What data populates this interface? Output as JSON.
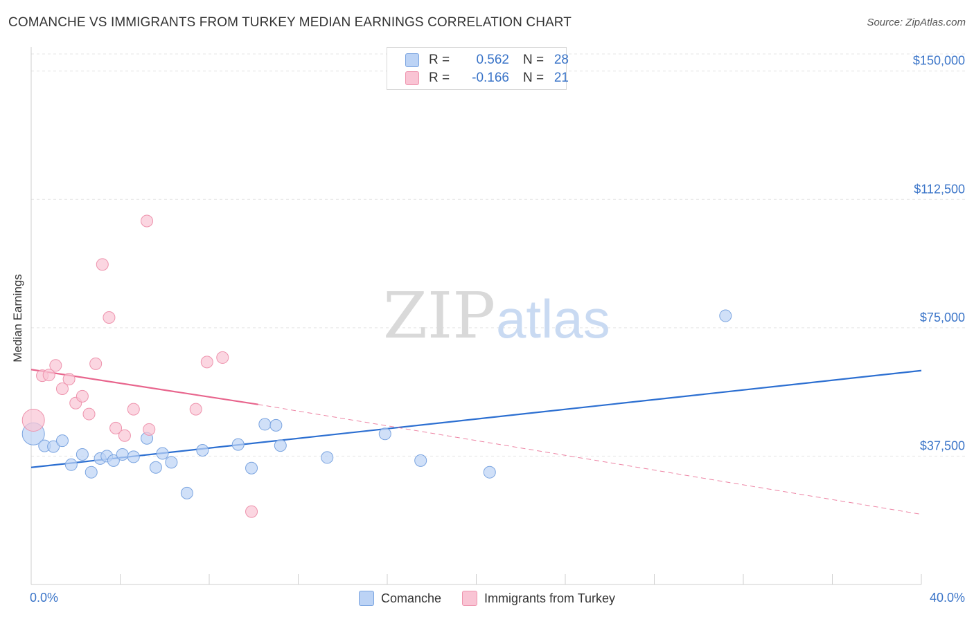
{
  "title": "COMANCHE VS IMMIGRANTS FROM TURKEY MEDIAN EARNINGS CORRELATION CHART",
  "source": "Source: ZipAtlas.com",
  "watermark": {
    "zip": "ZIP",
    "atlas": "atlas"
  },
  "colors": {
    "blue_fill": "#bcd3f5",
    "blue_stroke": "#7aa4e0",
    "blue_line": "#2c6fd1",
    "pink_fill": "#f9c4d4",
    "pink_stroke": "#ee93ad",
    "pink_line": "#e8658d",
    "axis_label": "#3a74c8"
  },
  "stats": {
    "rows": [
      {
        "r_label": "R =",
        "r_value": "0.562",
        "n_label": "N =",
        "n_value": "28"
      },
      {
        "r_label": "R =",
        "r_value": "-0.166",
        "n_label": "N =",
        "n_value": "21"
      }
    ]
  },
  "legend": {
    "items": [
      "Comanche",
      "Immigrants from Turkey"
    ]
  },
  "chart_data": {
    "type": "scatter",
    "title": "COMANCHE VS IMMIGRANTS FROM TURKEY MEDIAN EARNINGS CORRELATION CHART",
    "xlabel": "",
    "ylabel": "Median Earnings",
    "xlim": [
      0,
      40
    ],
    "ylim": [
      0,
      155000
    ],
    "x_tick_labels": [
      "0.0%",
      "40.0%"
    ],
    "y_ticks": [
      37500,
      75000,
      112500,
      150000
    ],
    "y_tick_labels": [
      "$37,500",
      "$75,000",
      "$112,500",
      "$150,000"
    ],
    "series": [
      {
        "name": "Comanche",
        "r": 0.562,
        "n": 28,
        "points": [
          {
            "x": 0.1,
            "y": 44000,
            "big": true
          },
          {
            "x": 0.6,
            "y": 40500
          },
          {
            "x": 1.0,
            "y": 40300
          },
          {
            "x": 1.4,
            "y": 42000
          },
          {
            "x": 1.8,
            "y": 35000
          },
          {
            "x": 2.3,
            "y": 38000
          },
          {
            "x": 2.7,
            "y": 32800
          },
          {
            "x": 3.1,
            "y": 36800
          },
          {
            "x": 3.4,
            "y": 37500
          },
          {
            "x": 3.7,
            "y": 36200
          },
          {
            "x": 4.1,
            "y": 38000
          },
          {
            "x": 4.6,
            "y": 37300
          },
          {
            "x": 5.2,
            "y": 42700
          },
          {
            "x": 5.6,
            "y": 34200
          },
          {
            "x": 5.9,
            "y": 38300
          },
          {
            "x": 6.3,
            "y": 35700
          },
          {
            "x": 7.0,
            "y": 26700
          },
          {
            "x": 7.7,
            "y": 39200
          },
          {
            "x": 9.3,
            "y": 40900
          },
          {
            "x": 9.9,
            "y": 34000
          },
          {
            "x": 10.5,
            "y": 46800
          },
          {
            "x": 11.0,
            "y": 46500
          },
          {
            "x": 11.2,
            "y": 40600
          },
          {
            "x": 13.3,
            "y": 37100
          },
          {
            "x": 15.9,
            "y": 44000
          },
          {
            "x": 17.5,
            "y": 36200
          },
          {
            "x": 20.6,
            "y": 32800
          },
          {
            "x": 31.2,
            "y": 78500
          }
        ],
        "trend": {
          "x1": 0,
          "y1": 34200,
          "x2": 40,
          "y2": 62500,
          "style": "solid"
        }
      },
      {
        "name": "Immigrants from Turkey",
        "r": -0.166,
        "n": 21,
        "points": [
          {
            "x": 0.1,
            "y": 48000,
            "big": true
          },
          {
            "x": 0.5,
            "y": 61000
          },
          {
            "x": 0.8,
            "y": 61200
          },
          {
            "x": 1.1,
            "y": 64000
          },
          {
            "x": 1.4,
            "y": 57200
          },
          {
            "x": 1.7,
            "y": 60000
          },
          {
            "x": 2.0,
            "y": 53000
          },
          {
            "x": 2.3,
            "y": 55000
          },
          {
            "x": 2.6,
            "y": 49800
          },
          {
            "x": 2.9,
            "y": 64500
          },
          {
            "x": 3.2,
            "y": 93500
          },
          {
            "x": 3.5,
            "y": 78000
          },
          {
            "x": 3.8,
            "y": 45700
          },
          {
            "x": 4.2,
            "y": 43500
          },
          {
            "x": 4.6,
            "y": 51200
          },
          {
            "x": 5.3,
            "y": 45300
          },
          {
            "x": 5.2,
            "y": 106200
          },
          {
            "x": 7.4,
            "y": 51200
          },
          {
            "x": 7.9,
            "y": 65000
          },
          {
            "x": 8.6,
            "y": 66300
          },
          {
            "x": 9.9,
            "y": 21300
          }
        ],
        "trend": {
          "x1": 0,
          "y1": 62800,
          "x2": 10.2,
          "y2": 52600,
          "style": "solid"
        },
        "trend_ext": {
          "x1": 10.2,
          "y1": 52600,
          "x2": 40,
          "y2": 20500,
          "style": "dashed"
        }
      }
    ]
  }
}
